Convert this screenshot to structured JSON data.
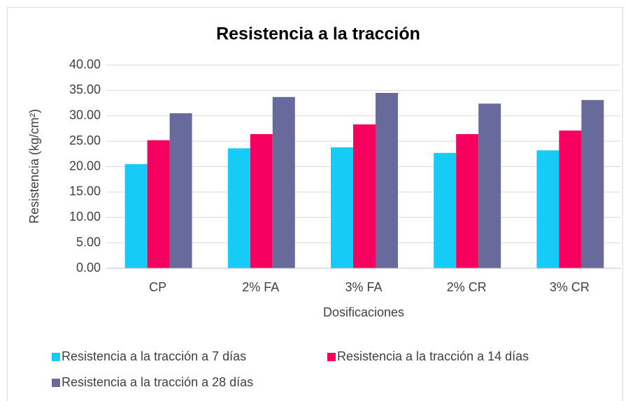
{
  "chart_data": {
    "type": "bar",
    "title": "Resistencia a la tracción",
    "x_label": "Dosificaciones",
    "y_label": "Resistencia (kg/cm²)",
    "categories": [
      "CP",
      "2% FA",
      "3% FA",
      "2% CR",
      "3% CR"
    ],
    "series": [
      {
        "name": "Resistencia a la tracción a 7 días",
        "color": "#17cbf7",
        "values": [
          20.5,
          23.6,
          23.8,
          22.7,
          23.2
        ]
      },
      {
        "name": "Resistencia a la tracción a 14 días",
        "color": "#f5005f",
        "values": [
          25.2,
          26.4,
          28.3,
          26.4,
          27.1
        ]
      },
      {
        "name": "Resistencia a la tracción a 28 días",
        "color": "#676a9a",
        "values": [
          30.5,
          33.7,
          34.5,
          32.4,
          33.1
        ]
      }
    ],
    "ylim": [
      0,
      40
    ],
    "yticks": [
      {
        "value": 0,
        "label": "0.00"
      },
      {
        "value": 5,
        "label": "5.00"
      },
      {
        "value": 10,
        "label": "10.00"
      },
      {
        "value": 15,
        "label": "15.00"
      },
      {
        "value": 20,
        "label": "20.00"
      },
      {
        "value": 25,
        "label": "25.00"
      },
      {
        "value": 30,
        "label": "30.00"
      },
      {
        "value": 35,
        "label": "35.00"
      },
      {
        "value": 40,
        "label": "40.00"
      }
    ],
    "grid": true,
    "legend": "bottom"
  }
}
